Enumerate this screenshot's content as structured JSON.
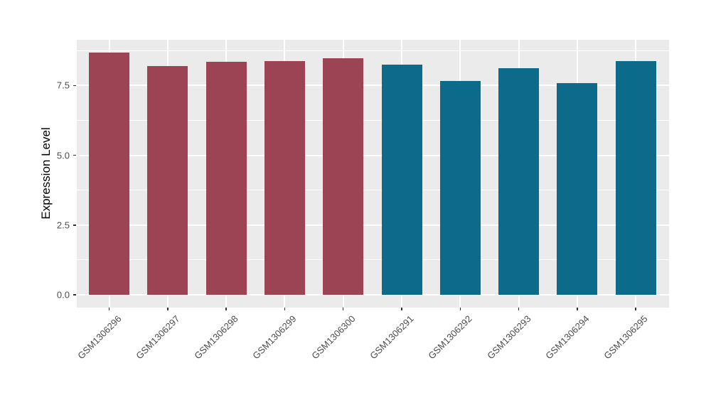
{
  "chart_data": {
    "type": "bar",
    "title": "",
    "xlabel": "",
    "ylabel": "Expression Level",
    "categories": [
      "GSM1306296",
      "GSM1306297",
      "GSM1306298",
      "GSM1306299",
      "GSM1306300",
      "GSM1306291",
      "GSM1306292",
      "GSM1306293",
      "GSM1306294",
      "GSM1306295"
    ],
    "values": [
      8.67,
      8.19,
      8.34,
      8.38,
      8.47,
      8.25,
      7.65,
      8.13,
      7.58,
      8.36
    ],
    "bar_colors": [
      "#9C4453",
      "#9C4453",
      "#9C4453",
      "#9C4453",
      "#9C4453",
      "#0C6A8B",
      "#0C6A8B",
      "#0C6A8B",
      "#0C6A8B",
      "#0C6A8B"
    ],
    "group_colors": {
      "left_group": "#9C4453",
      "right_group": "#0C6A8B"
    },
    "y_ticks": [
      0.0,
      2.5,
      5.0,
      7.5
    ],
    "y_tick_labels": [
      "0.0",
      "2.5",
      "5.0",
      "7.5"
    ],
    "y_minor_ticks": [
      1.25,
      3.75,
      6.25,
      8.75
    ],
    "ylim": [
      0,
      9.14
    ],
    "x_label_rotation": -45,
    "grid": true,
    "legend_position": "none",
    "style": {
      "panel_background": "#EBEBEB",
      "gridline_color": "#FFFFFF",
      "axis_text_color": "#4D4D4D",
      "axis_title_color": "#000000",
      "tick_mark_color": "#333333",
      "figure_background": "#FFFFFF"
    }
  }
}
